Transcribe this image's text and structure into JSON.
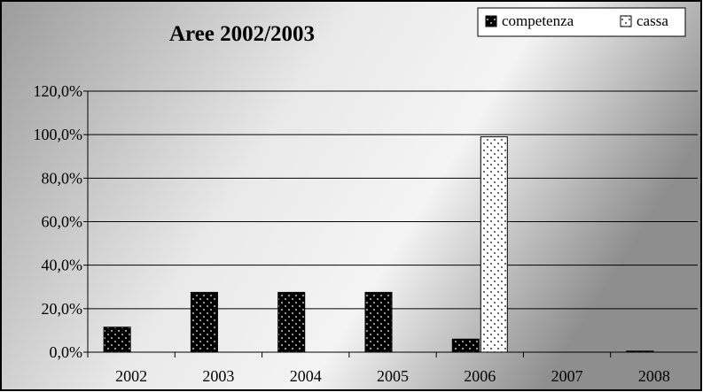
{
  "chart_data": {
    "type": "bar",
    "title": "Aree 2002/2003",
    "xlabel": "",
    "ylabel": "",
    "categories": [
      "2002",
      "2003",
      "2004",
      "2005",
      "2006",
      "2007",
      "2008"
    ],
    "series": [
      {
        "name": "competenza",
        "values": [
          11.5,
          27.5,
          27.5,
          27.5,
          6.0,
          0.0,
          0.5
        ],
        "color": "#000000",
        "pattern": "white-dots-on-black"
      },
      {
        "name": "cassa",
        "values": [
          0.0,
          0.0,
          0.0,
          0.0,
          99.0,
          0.0,
          0.0
        ],
        "color": "#ffffff",
        "pattern": "black-dots-on-white"
      }
    ],
    "ylim": [
      0,
      120
    ],
    "yticks": [
      "0,0%",
      "20,0%",
      "40,0%",
      "60,0%",
      "80,0%",
      "100,0%",
      "120,0%"
    ],
    "grid": true,
    "legend_position": "top-right",
    "background": "gradient grey to white"
  }
}
